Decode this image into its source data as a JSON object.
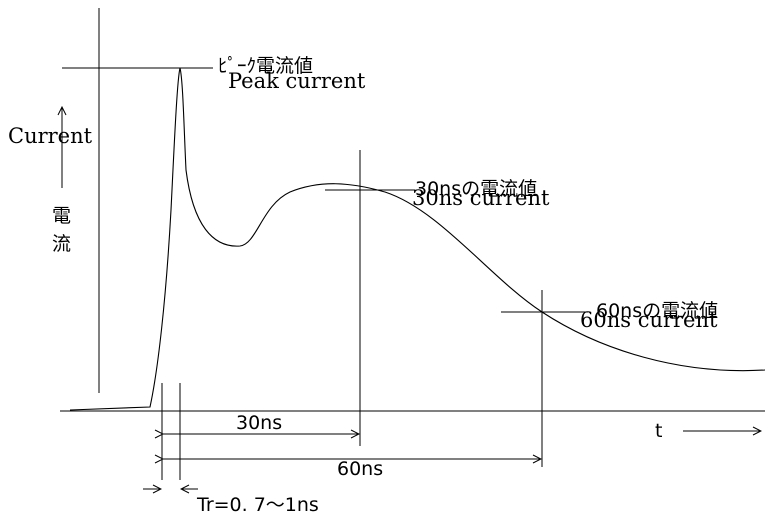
{
  "labels": {
    "peak_jp": "ﾋﾟｰｸ電流値",
    "peak_en": "Peak current",
    "current_en": "Current",
    "current_jp_1": "電",
    "current_jp_2": "流",
    "c30_jp": "30nsの電流値",
    "c30_en": "30ns current",
    "c60_jp": "60nsの電流値",
    "c60_en": "60ns current",
    "t_axis": "t",
    "dim_30": "30ns",
    "dim_60": "60ns",
    "rise_time": "Tr=0. 7〜1ns"
  }
}
